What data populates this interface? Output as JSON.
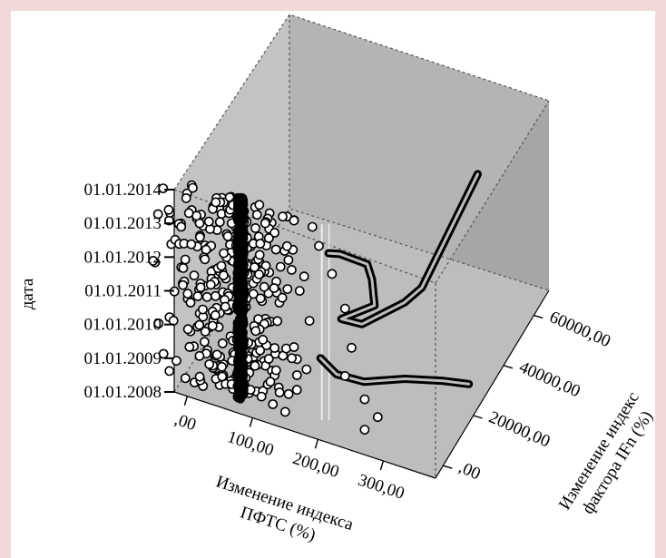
{
  "chart_data": {
    "type": "scatter",
    "projection": "3d",
    "title": "",
    "axes": {
      "x": {
        "label_lines": [
          "Изменение индекса",
          "ПФТС (%)"
        ],
        "ticks": [
          ",00",
          "100,00",
          "200,00",
          "300,00"
        ],
        "tick_values": [
          0,
          100,
          200,
          300
        ],
        "range": [
          -20,
          380
        ]
      },
      "y": {
        "label_lines": [
          "Изменение индекс",
          "фактора IFn (%)"
        ],
        "ticks": [
          ",00",
          "20000,00",
          "40000,00",
          "60000,00"
        ],
        "tick_values": [
          0,
          20000,
          40000,
          60000
        ],
        "range": [
          -5000,
          70000
        ]
      },
      "z": {
        "label": "дата",
        "ticks": [
          "01.01.2008",
          "01.01.2009",
          "01.01.2010",
          "01.01.2011",
          "01.01.2012",
          "01.01.2013",
          "01.01.2014"
        ],
        "tick_values": [
          2008,
          2009,
          2010,
          2011,
          2012,
          2013,
          2014
        ],
        "range": [
          2008,
          2014
        ]
      }
    },
    "grid": false,
    "legend": "none",
    "colors": {
      "wall_left": "#c3c3c3",
      "wall_back": "#b4b4b4",
      "wall_right": "#a6a6a6",
      "floor": "#bdbdbd",
      "marker_fill": "#ffffff",
      "marker_edge": "#000000",
      "dense_cluster": "#000000",
      "band": "#000000"
    },
    "series": [
      {
        "x_center": 70,
        "y_value": 0,
        "x_spread": 5,
        "z_range": [
          2008,
          2014
        ],
        "point_count": 400
      },
      {
        "x_center": 60,
        "y_value": 0,
        "x_spread": 60,
        "z_range": [
          2008,
          2014
        ],
        "point_count": 350
      },
      {
        "x": [
          -40,
          180,
          190,
          210,
          230,
          240,
          230,
          260,
          280,
          260
        ],
        "y": [
          0,
          0,
          0,
          0,
          0,
          0,
          0,
          0,
          0,
          0
        ],
        "z": [
          2012.9,
          2013.8,
          2013.3,
          2012.6,
          2011.7,
          2010.6,
          2009.7,
          2009.2,
          2008.8,
          2008.3
        ]
      },
      {
        "x": [
          200,
          200
        ],
        "y": [
          0,
          0
        ],
        "z": [
          2008.2,
          2014
        ]
      },
      {
        "x": [
          200,
          200
        ],
        "y": [
          0,
          0
        ],
        "z": [
          2008.2,
          2014
        ]
      },
      {
        "x": [
          200,
          215,
          250,
          255,
          260,
          215,
          235,
          270,
          278,
          345
        ],
        "y": [
          2000,
          3000,
          6000,
          7000,
          6500,
          4000,
          9000,
          22000,
          30000,
          38000
        ],
        "z": [
          2013.0,
          2013.0,
          2012.7,
          2012.2,
          2011.5,
          2011.0,
          2010.6,
          2010.5,
          2010.4,
          2013.6
        ]
      },
      {
        "x": [
          200,
          215,
          250,
          255,
          260,
          215,
          235,
          270,
          278,
          345
        ],
        "y": [
          2000,
          3000,
          6000,
          7000,
          6500,
          4000,
          9000,
          22000,
          30000,
          38000
        ],
        "z": [
          2013.0,
          2013.0,
          2012.7,
          2012.2,
          2011.5,
          2011.0,
          2010.6,
          2010.5,
          2010.4,
          2013.6
        ]
      },
      {
        "x": [
          190,
          210,
          240,
          280,
          320,
          350
        ],
        "y": [
          1000,
          3000,
          8000,
          18000,
          26000,
          30000
        ],
        "z": [
          2009.9,
          2009.4,
          2009.0,
          2008.6,
          2008.2,
          2008.0
        ]
      },
      {
        "x": [
          190,
          210,
          240,
          280,
          320,
          350
        ],
        "y": [
          1000,
          3000,
          8000,
          18000,
          26000,
          30000
        ],
        "z": [
          2009.9,
          2009.4,
          2009.0,
          2008.6,
          2008.2,
          2008.0
        ]
      }
    ]
  }
}
